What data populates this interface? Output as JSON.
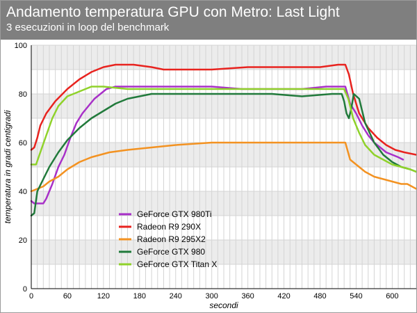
{
  "header": {
    "title": "Andamento temperatura GPU con Metro: Last Light",
    "subtitle": "3 esecuzioni in loop del benchmark"
  },
  "chart_data": {
    "type": "line",
    "title": "Andamento temperatura GPU con Metro: Last Light",
    "subtitle": "3 esecuzioni in loop del benchmark",
    "xlabel": "secondi",
    "ylabel": "temperatura in gradi centigradi",
    "xlim": [
      0,
      640
    ],
    "ylim": [
      0,
      100
    ],
    "xticks": [
      0,
      60,
      120,
      180,
      240,
      300,
      360,
      420,
      480,
      540,
      600
    ],
    "yticks": [
      0,
      20,
      40,
      60,
      80,
      100
    ],
    "grid": true,
    "legend": "center-left",
    "series": [
      {
        "name": "GeForce GTX 980Ti",
        "color": "#a830c8",
        "points": [
          [
            0,
            36
          ],
          [
            5,
            35
          ],
          [
            20,
            35
          ],
          [
            25,
            37
          ],
          [
            35,
            43
          ],
          [
            45,
            50
          ],
          [
            55,
            55
          ],
          [
            65,
            62
          ],
          [
            75,
            68
          ],
          [
            85,
            72
          ],
          [
            95,
            75
          ],
          [
            105,
            78
          ],
          [
            115,
            80
          ],
          [
            125,
            82
          ],
          [
            140,
            83
          ],
          [
            170,
            83
          ],
          [
            200,
            83
          ],
          [
            250,
            83
          ],
          [
            300,
            83
          ],
          [
            350,
            82
          ],
          [
            400,
            82
          ],
          [
            450,
            82
          ],
          [
            490,
            83
          ],
          [
            522,
            83
          ],
          [
            530,
            76
          ],
          [
            540,
            72
          ],
          [
            550,
            67
          ],
          [
            560,
            63
          ],
          [
            570,
            60
          ],
          [
            580,
            58
          ],
          [
            590,
            56
          ],
          [
            600,
            55
          ],
          [
            610,
            54
          ],
          [
            618,
            53
          ]
        ]
      },
      {
        "name": "Radeon R9 290X",
        "color": "#e8231f",
        "points": [
          [
            0,
            57
          ],
          [
            5,
            58
          ],
          [
            10,
            62
          ],
          [
            15,
            67
          ],
          [
            25,
            72
          ],
          [
            40,
            77
          ],
          [
            60,
            82
          ],
          [
            80,
            86
          ],
          [
            100,
            89
          ],
          [
            120,
            91
          ],
          [
            140,
            92
          ],
          [
            170,
            92
          ],
          [
            200,
            91
          ],
          [
            220,
            90
          ],
          [
            260,
            90
          ],
          [
            300,
            90
          ],
          [
            360,
            91
          ],
          [
            420,
            91
          ],
          [
            480,
            91
          ],
          [
            510,
            92
          ],
          [
            522,
            92
          ],
          [
            528,
            88
          ],
          [
            535,
            80
          ],
          [
            545,
            72
          ],
          [
            560,
            66
          ],
          [
            575,
            62
          ],
          [
            590,
            59
          ],
          [
            605,
            57
          ],
          [
            620,
            56
          ],
          [
            640,
            55
          ]
        ]
      },
      {
        "name": "Radeon R9 295X2",
        "color": "#f39221",
        "points": [
          [
            0,
            40
          ],
          [
            10,
            41
          ],
          [
            20,
            42
          ],
          [
            30,
            44
          ],
          [
            45,
            46
          ],
          [
            60,
            49
          ],
          [
            80,
            52
          ],
          [
            100,
            54
          ],
          [
            130,
            56
          ],
          [
            160,
            57
          ],
          [
            200,
            58
          ],
          [
            240,
            59
          ],
          [
            300,
            60
          ],
          [
            360,
            60
          ],
          [
            420,
            60
          ],
          [
            480,
            60
          ],
          [
            522,
            60
          ],
          [
            530,
            53
          ],
          [
            540,
            51
          ],
          [
            555,
            48
          ],
          [
            570,
            46
          ],
          [
            585,
            45
          ],
          [
            600,
            44
          ],
          [
            615,
            43
          ],
          [
            625,
            43
          ],
          [
            640,
            41
          ]
        ]
      },
      {
        "name": "GeForce GTX 980",
        "color": "#217a3b",
        "points": [
          [
            0,
            30
          ],
          [
            5,
            31
          ],
          [
            10,
            40
          ],
          [
            20,
            45
          ],
          [
            30,
            50
          ],
          [
            45,
            56
          ],
          [
            60,
            61
          ],
          [
            80,
            66
          ],
          [
            100,
            70
          ],
          [
            120,
            73
          ],
          [
            140,
            76
          ],
          [
            160,
            78
          ],
          [
            180,
            79
          ],
          [
            200,
            80
          ],
          [
            260,
            80
          ],
          [
            320,
            80
          ],
          [
            400,
            80
          ],
          [
            450,
            79
          ],
          [
            500,
            80
          ],
          [
            516,
            80
          ],
          [
            520,
            77
          ],
          [
            524,
            72
          ],
          [
            528,
            70
          ],
          [
            532,
            74
          ],
          [
            536,
            80
          ],
          [
            545,
            78
          ],
          [
            555,
            68
          ],
          [
            570,
            60
          ],
          [
            585,
            55
          ],
          [
            600,
            52
          ],
          [
            615,
            50
          ],
          [
            630,
            49
          ],
          [
            640,
            48
          ]
        ]
      },
      {
        "name": "GeForce GTX Titan X",
        "color": "#8fd22a",
        "points": [
          [
            0,
            51
          ],
          [
            8,
            51
          ],
          [
            15,
            56
          ],
          [
            25,
            63
          ],
          [
            35,
            70
          ],
          [
            45,
            75
          ],
          [
            60,
            79
          ],
          [
            80,
            81
          ],
          [
            100,
            83
          ],
          [
            120,
            83
          ],
          [
            160,
            82
          ],
          [
            200,
            82
          ],
          [
            260,
            82
          ],
          [
            320,
            82
          ],
          [
            400,
            82
          ],
          [
            460,
            82
          ],
          [
            500,
            82
          ],
          [
            520,
            82
          ],
          [
            527,
            78
          ],
          [
            535,
            70
          ],
          [
            545,
            64
          ],
          [
            555,
            59
          ],
          [
            570,
            55
          ],
          [
            585,
            53
          ],
          [
            600,
            51
          ],
          [
            615,
            50
          ],
          [
            630,
            49
          ],
          [
            640,
            48
          ]
        ]
      }
    ]
  }
}
